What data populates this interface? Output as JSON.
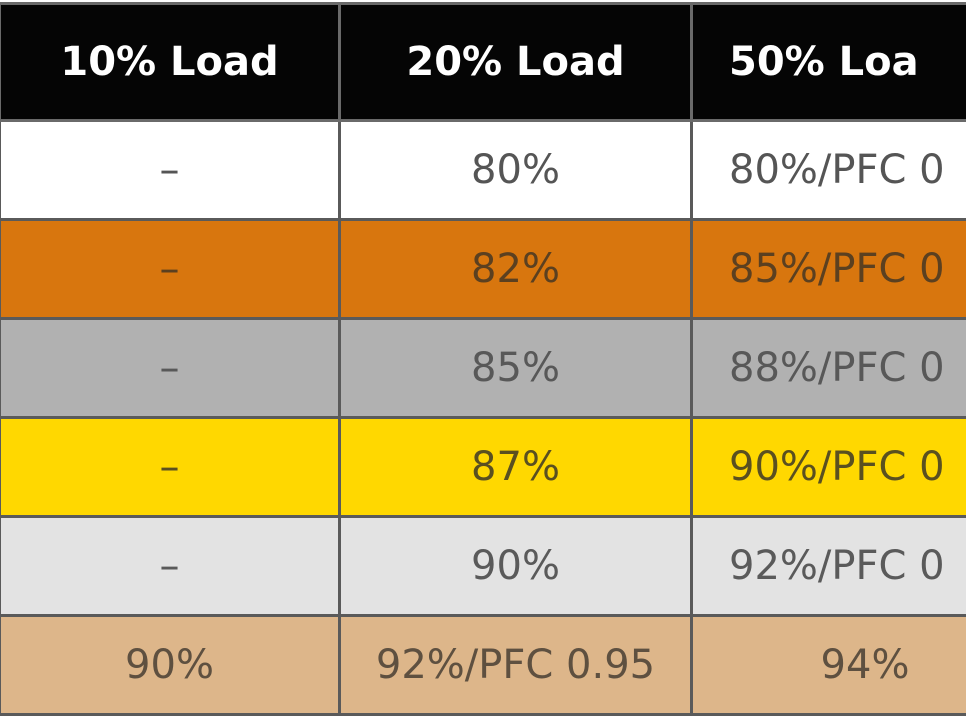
{
  "table": {
    "header": [
      "10% Load",
      "20% Load",
      "50% Loa"
    ],
    "rows": [
      [
        "–",
        "80%",
        "80%/PFC 0"
      ],
      [
        "–",
        "82%",
        "85%/PFC 0"
      ],
      [
        "–",
        "85%",
        "88%/PFC 0"
      ],
      [
        "–",
        "87%",
        "90%/PFC 0"
      ],
      [
        "–",
        "90%",
        "92%/PFC 0"
      ],
      [
        "90%",
        "92%/PFC 0.95",
        "94%"
      ]
    ]
  }
}
